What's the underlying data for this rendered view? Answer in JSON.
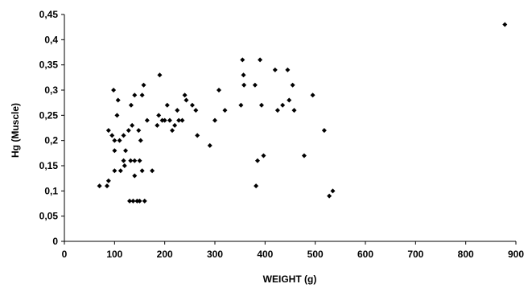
{
  "chart_data": {
    "type": "scatter",
    "title": "",
    "xlabel": "WEIGHT (g)",
    "ylabel": "Hg (Muscle)",
    "xlim": [
      0,
      900
    ],
    "ylim": [
      0,
      0.45
    ],
    "grid": false,
    "legend": "none",
    "point_color": "#000000",
    "x_ticks": [
      "0",
      "100",
      "200",
      "300",
      "400",
      "500",
      "600",
      "700",
      "800",
      "900"
    ],
    "y_ticks": [
      "0",
      "0,05",
      "0,1",
      "0,15",
      "0,2",
      "0,25",
      "0,3",
      "0,35",
      "0,4",
      "0,45"
    ],
    "series": [
      {
        "points": [
          [
            70,
            0.11
          ],
          [
            85,
            0.11
          ],
          [
            88,
            0.12
          ],
          [
            88,
            0.22
          ],
          [
            95,
            0.21
          ],
          [
            98,
            0.3
          ],
          [
            100,
            0.2
          ],
          [
            100,
            0.18
          ],
          [
            100,
            0.14
          ],
          [
            105,
            0.25
          ],
          [
            107,
            0.28
          ],
          [
            110,
            0.2
          ],
          [
            112,
            0.14
          ],
          [
            118,
            0.21
          ],
          [
            118,
            0.16
          ],
          [
            120,
            0.15
          ],
          [
            122,
            0.18
          ],
          [
            128,
            0.22
          ],
          [
            130,
            0.08
          ],
          [
            132,
            0.16
          ],
          [
            133,
            0.27
          ],
          [
            135,
            0.23
          ],
          [
            137,
            0.08
          ],
          [
            140,
            0.29
          ],
          [
            140,
            0.16
          ],
          [
            140,
            0.13
          ],
          [
            145,
            0.08
          ],
          [
            148,
            0.22
          ],
          [
            150,
            0.16
          ],
          [
            150,
            0.08
          ],
          [
            152,
            0.2
          ],
          [
            155,
            0.14
          ],
          [
            155,
            0.29
          ],
          [
            158,
            0.31
          ],
          [
            160,
            0.08
          ],
          [
            165,
            0.24
          ],
          [
            175,
            0.14
          ],
          [
            185,
            0.23
          ],
          [
            188,
            0.25
          ],
          [
            190,
            0.33
          ],
          [
            195,
            0.24
          ],
          [
            200,
            0.24
          ],
          [
            205,
            0.27
          ],
          [
            210,
            0.24
          ],
          [
            215,
            0.22
          ],
          [
            220,
            0.23
          ],
          [
            225,
            0.26
          ],
          [
            228,
            0.24
          ],
          [
            235,
            0.24
          ],
          [
            240,
            0.29
          ],
          [
            243,
            0.28
          ],
          [
            255,
            0.27
          ],
          [
            262,
            0.26
          ],
          [
            265,
            0.21
          ],
          [
            290,
            0.19
          ],
          [
            300,
            0.24
          ],
          [
            308,
            0.3
          ],
          [
            320,
            0.26
          ],
          [
            352,
            0.27
          ],
          [
            355,
            0.36
          ],
          [
            357,
            0.33
          ],
          [
            358,
            0.31
          ],
          [
            380,
            0.31
          ],
          [
            382,
            0.11
          ],
          [
            385,
            0.16
          ],
          [
            390,
            0.36
          ],
          [
            393,
            0.27
          ],
          [
            397,
            0.17
          ],
          [
            420,
            0.34
          ],
          [
            425,
            0.26
          ],
          [
            435,
            0.27
          ],
          [
            445,
            0.34
          ],
          [
            448,
            0.28
          ],
          [
            455,
            0.31
          ],
          [
            458,
            0.26
          ],
          [
            478,
            0.17
          ],
          [
            495,
            0.29
          ],
          [
            518,
            0.22
          ],
          [
            528,
            0.09
          ],
          [
            535,
            0.1
          ],
          [
            878,
            0.43
          ]
        ]
      }
    ]
  }
}
